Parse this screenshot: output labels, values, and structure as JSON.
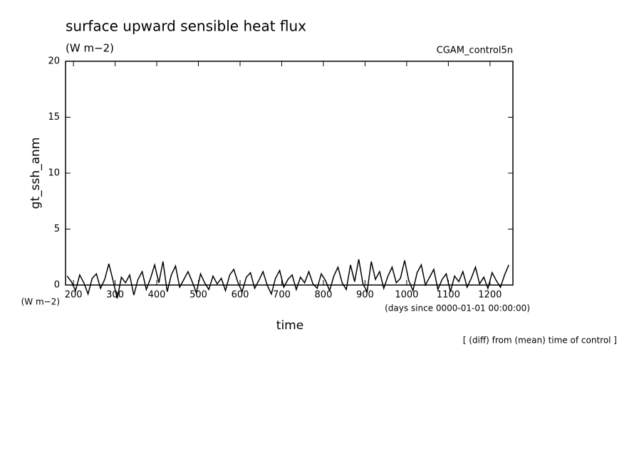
{
  "chart_data": {
    "type": "line",
    "title": "surface upward sensible heat flux",
    "subtitle": "(W m−2)",
    "annotation_right": "CGAM_control5n",
    "ylabel": "gt_ssh_anm",
    "yunits": "(W m−2)",
    "xlabel": "time",
    "xunits": "(days since 0000-01-01 00:00:00)",
    "footnote": "[ (diff) from (mean) time of control ]",
    "xlim": [
      181,
      1255
    ],
    "ylim": [
      0,
      20
    ],
    "xticks": [
      200,
      300,
      400,
      500,
      600,
      700,
      800,
      900,
      1000,
      1100,
      1200
    ],
    "yticks": [
      0,
      5,
      10,
      15,
      20
    ],
    "grid": false,
    "series": [
      {
        "name": "gt_ssh_anm",
        "color": "#000000",
        "x": [
          185,
          195,
          205,
          215,
          225,
          235,
          245,
          255,
          265,
          275,
          285,
          295,
          305,
          315,
          325,
          335,
          345,
          355,
          365,
          375,
          385,
          395,
          405,
          415,
          425,
          435,
          445,
          455,
          465,
          475,
          485,
          495,
          505,
          515,
          525,
          535,
          545,
          555,
          565,
          575,
          585,
          595,
          605,
          615,
          625,
          635,
          645,
          655,
          665,
          675,
          685,
          695,
          705,
          715,
          725,
          735,
          745,
          755,
          765,
          775,
          785,
          795,
          805,
          815,
          825,
          835,
          845,
          855,
          865,
          875,
          885,
          895,
          905,
          915,
          925,
          935,
          945,
          955,
          965,
          975,
          985,
          995,
          1005,
          1015,
          1025,
          1035,
          1045,
          1055,
          1065,
          1075,
          1085,
          1095,
          1105,
          1115,
          1125,
          1135,
          1145,
          1155,
          1165,
          1175,
          1185,
          1195,
          1205,
          1215,
          1225,
          1235,
          1245
        ],
        "values": [
          0.8,
          0.3,
          -0.5,
          0.9,
          0.2,
          -0.8,
          0.6,
          1.0,
          -0.3,
          0.5,
          1.9,
          0.4,
          -1.2,
          0.7,
          0.2,
          0.9,
          -0.9,
          0.5,
          1.2,
          -0.4,
          0.6,
          1.8,
          0.2,
          2.1,
          -0.6,
          0.9,
          1.7,
          -0.2,
          0.5,
          1.2,
          0.3,
          -0.7,
          1.0,
          0.2,
          -0.4,
          0.8,
          0.1,
          0.6,
          -0.5,
          0.9,
          1.4,
          0.2,
          -0.6,
          0.7,
          1.1,
          -0.3,
          0.4,
          1.2,
          0.0,
          -0.8,
          0.6,
          1.3,
          -0.2,
          0.5,
          0.9,
          -0.4,
          0.7,
          0.2,
          1.2,
          0.1,
          -0.3,
          1.0,
          0.4,
          -0.5,
          0.8,
          1.6,
          0.2,
          -0.4,
          1.8,
          0.3,
          2.3,
          0.1,
          -0.6,
          2.1,
          0.5,
          1.2,
          -0.3,
          0.8,
          1.6,
          0.2,
          0.6,
          2.2,
          0.4,
          -0.5,
          1.1,
          1.8,
          0.0,
          0.7,
          1.4,
          -0.4,
          0.5,
          1.0,
          -0.6,
          0.8,
          0.3,
          1.2,
          -0.2,
          0.6,
          1.6,
          0.1,
          0.7,
          -0.3,
          1.1,
          0.4,
          -0.2,
          0.9,
          1.8
        ]
      }
    ]
  }
}
